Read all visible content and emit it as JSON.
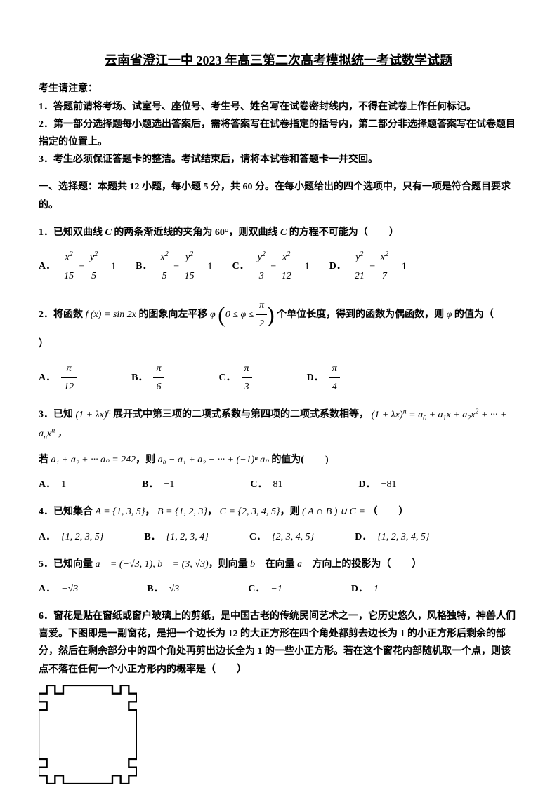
{
  "title": "云南省澄江一中 2023 年高三第二次高考模拟统一考试数学试题",
  "notice": {
    "header": "考生请注意：",
    "line1": "1．答题前请将考场、试室号、座位号、考生号、姓名写在试卷密封线内，不得在试卷上作任何标记。",
    "line2": "2．第一部分选择题每小题选出答案后，需将答案写在试卷指定的括号内，第二部分非选择题答案写在试卷题目指定的位置上。",
    "line3": "3．考生必须保证答题卡的整洁。考试结束后，请将本试卷和答题卡一并交回。"
  },
  "section1": "一、选择题：本题共 12 小题，每小题 5 分，共 60 分。在每小题给出的四个选项中，只有一项是符合题目要求的。",
  "q1": {
    "text_a": "1．已知双曲线 ",
    "text_b": " 的两条渐近线的夹角为 60°，则双曲线 ",
    "text_c": " 的方程不可能为（",
    "text_d": "）",
    "sym": "C",
    "A": {
      "label": "A．",
      "n1": "x",
      "d1": "15",
      "n2": "y",
      "d2": "5"
    },
    "B": {
      "label": "B．",
      "n1": "x",
      "d1": "5",
      "n2": "y",
      "d2": "15"
    },
    "C": {
      "label": "C．",
      "n1": "y",
      "d1": "3",
      "n2": "x",
      "d2": "12"
    },
    "D": {
      "label": "D．",
      "n1": "y",
      "d1": "21",
      "n2": "x",
      "d2": "7"
    }
  },
  "q2": {
    "text_a": "2．将函数 ",
    "fx": "f (x) = sin 2x",
    "text_b": " 的图象向左平移 ",
    "phi": "φ",
    "cond_a": "0 ≤ φ ≤ ",
    "cond_num": "π",
    "cond_den": "2",
    "text_c": " 个单位长度，得到的函数为偶函数，则 ",
    "text_d": " 的值为（",
    "text_e": "）",
    "A": {
      "label": "A．",
      "num": "π",
      "den": "12"
    },
    "B": {
      "label": "B．",
      "num": "π",
      "den": "6"
    },
    "C": {
      "label": "C．",
      "num": "π",
      "den": "3"
    },
    "D": {
      "label": "D．",
      "num": "π",
      "den": "4"
    }
  },
  "q3": {
    "text_a": "3．已知 ",
    "expr1": "(1 + λx)",
    "sup_n": "n",
    "text_b": " 展开式中第三项的二项式系数与第四项的二项式系数相等，",
    "expr2_a": "(1 + λx)",
    "expr2_b": " = a",
    "expr2_c": " + a",
    "expr2_d": "x + a",
    "expr2_e": "x",
    "expr2_f": " + ··· + a",
    "expr2_g": "x",
    "text_c": "若 ",
    "sumexpr": "a₁ + a₂ + ··· aₙ = 242",
    "text_d": "，则 ",
    "altexpr": "a₀ − a₁ + a₂ − ··· + (−1)ⁿ aₙ",
    "text_e": " 的值为(",
    "text_f": ")",
    "A": {
      "label": "A．",
      "val": "1"
    },
    "B": {
      "label": "B．",
      "val": "−1"
    },
    "C": {
      "label": "C．",
      "val": "81"
    },
    "D": {
      "label": "D．",
      "val": "−81"
    }
  },
  "q4": {
    "text_a": "4．已知集合 ",
    "setA": "A = {1, 3, 5}",
    "text_b": "， ",
    "setB": "B = {1, 2, 3}",
    "text_c": "， ",
    "setC": "C = {2, 3, 4, 5}",
    "text_d": "，则 ",
    "expr": "( A ∩ B ) ∪ C = ",
    "text_e": "（",
    "text_f": "）",
    "A": {
      "label": "A．",
      "val": "{1, 2, 3, 5}"
    },
    "B": {
      "label": "B．",
      "val": "{1, 2, 3, 4}"
    },
    "C": {
      "label": "C．",
      "val": "{2, 3, 4, 5}"
    },
    "D": {
      "label": "D．",
      "val": "{1, 2, 3, 4, 5}"
    }
  },
  "q5": {
    "text_a": "5．已知向量 ",
    "veca": "a⃗ = (−√3, 1), b⃗ = (3, √3)",
    "text_b": "，则向量 ",
    "vb": "b⃗",
    "text_c": " 在向量 ",
    "va": "a⃗",
    "text_d": " 方向上的投影为（",
    "text_e": "）",
    "A": {
      "label": "A．",
      "val": "−√3"
    },
    "B": {
      "label": "B．",
      "val": "√3"
    },
    "C": {
      "label": "C．",
      "val": "−1"
    },
    "D": {
      "label": "D．",
      "val": "1"
    }
  },
  "q6": {
    "text": "6．窗花是贴在窗纸或窗户玻璃上的剪纸，是中国古老的传统民间艺术之一，它历史悠久，风格独特，神兽人们喜爱。下图即是一副窗花，是把一个边长为 12 的大正方形在四个角处都剪去边长为 1 的小正方形后剩余的部分，然后在剩余部分中的四个角处再剪出边长全为 1 的一些小正方形。若在这个窗花内部随机取一个点，则该点不落在任何一个小正方形内的概率是（",
    "text_b": "）"
  },
  "diagram": {
    "outer_size": 12,
    "cut_size": 1,
    "stroke": "#000000",
    "stroke_width": 2,
    "fill": "#ffffff"
  }
}
